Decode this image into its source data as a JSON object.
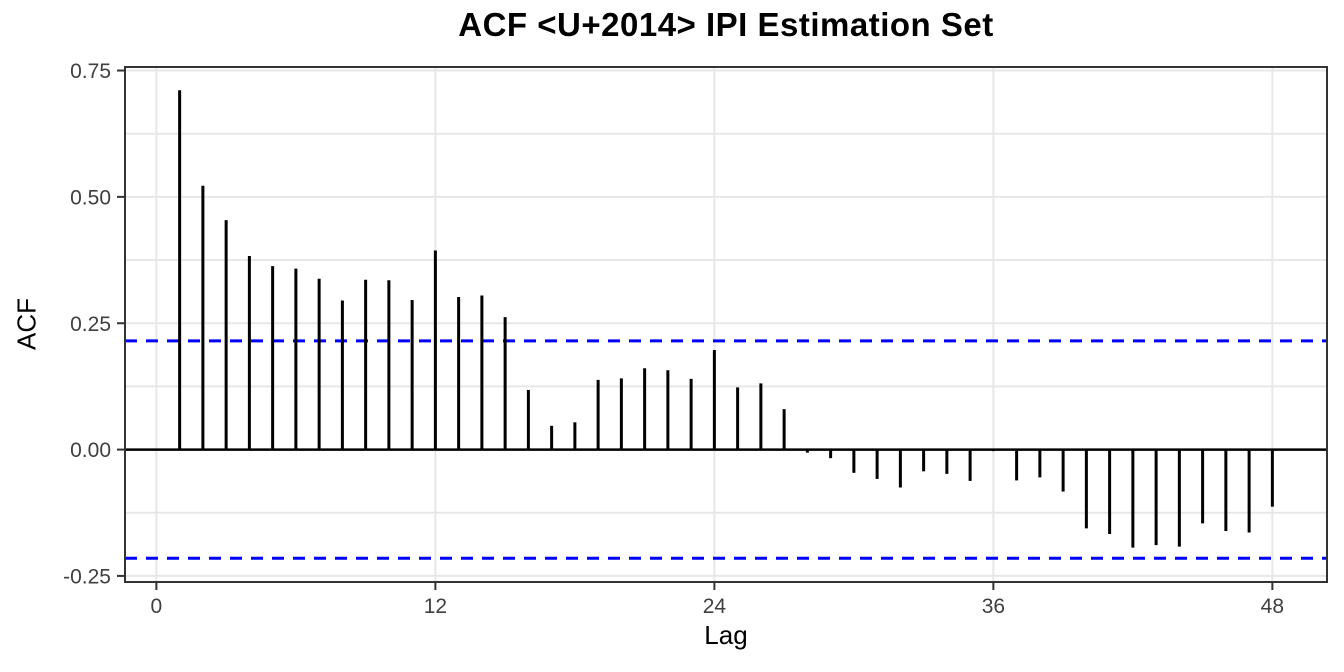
{
  "chart_data": {
    "type": "bar",
    "subtype": "acf-correlogram",
    "title": "ACF <U+2014> IPI Estimation Set",
    "xlabel": "Lag",
    "ylabel": "ACF",
    "x": [
      1,
      2,
      3,
      4,
      5,
      6,
      7,
      8,
      9,
      10,
      11,
      12,
      13,
      14,
      15,
      16,
      17,
      18,
      19,
      20,
      21,
      22,
      23,
      24,
      25,
      26,
      27,
      28,
      29,
      30,
      31,
      32,
      33,
      34,
      35,
      36,
      37,
      38,
      39,
      40,
      41,
      42,
      43,
      44,
      45,
      46,
      47,
      48
    ],
    "values": [
      0.711,
      0.522,
      0.454,
      0.383,
      0.363,
      0.358,
      0.338,
      0.295,
      0.336,
      0.335,
      0.296,
      0.394,
      0.302,
      0.305,
      0.262,
      0.118,
      0.047,
      0.054,
      0.138,
      0.141,
      0.161,
      0.157,
      0.14,
      0.197,
      0.123,
      0.131,
      0.08,
      -0.006,
      -0.017,
      -0.046,
      -0.058,
      -0.075,
      -0.043,
      -0.048,
      -0.062,
      -0.003,
      -0.061,
      -0.055,
      -0.083,
      -0.156,
      -0.167,
      -0.194,
      -0.189,
      -0.192,
      -0.146,
      -0.161,
      -0.164,
      -0.113
    ],
    "confidence_bounds": {
      "upper": 0.215,
      "lower": -0.215,
      "line_style": "dashed"
    },
    "zero_line": 0,
    "x_ticks": {
      "values": [
        0,
        12,
        24,
        36,
        48
      ],
      "labels": [
        "0",
        "12",
        "24",
        "36",
        "48"
      ]
    },
    "y_ticks": {
      "values": [
        -0.25,
        0,
        0.25,
        0.5,
        0.75
      ],
      "labels": [
        "-0.25",
        "0.00",
        "0.25",
        "0.50",
        "0.75"
      ]
    },
    "grid": {
      "y_minor": [
        -0.125,
        0.125,
        0.375,
        0.625
      ],
      "x_minor": [],
      "grid_on": true
    },
    "xlim": [
      -1.35,
      50.35
    ],
    "ylim": [
      -0.262,
      0.757
    ],
    "legend_position": "none",
    "colors": {
      "bar": "#000000",
      "zero_line": "#000000",
      "confidence": "#0000FF",
      "grid": "#E7E7E7",
      "panel_border": "#333333",
      "tick_mark": "#333333",
      "tick_label": "#404040",
      "axis_title": "#000000",
      "title": "#000000",
      "background": "#FFFFFF"
    }
  }
}
